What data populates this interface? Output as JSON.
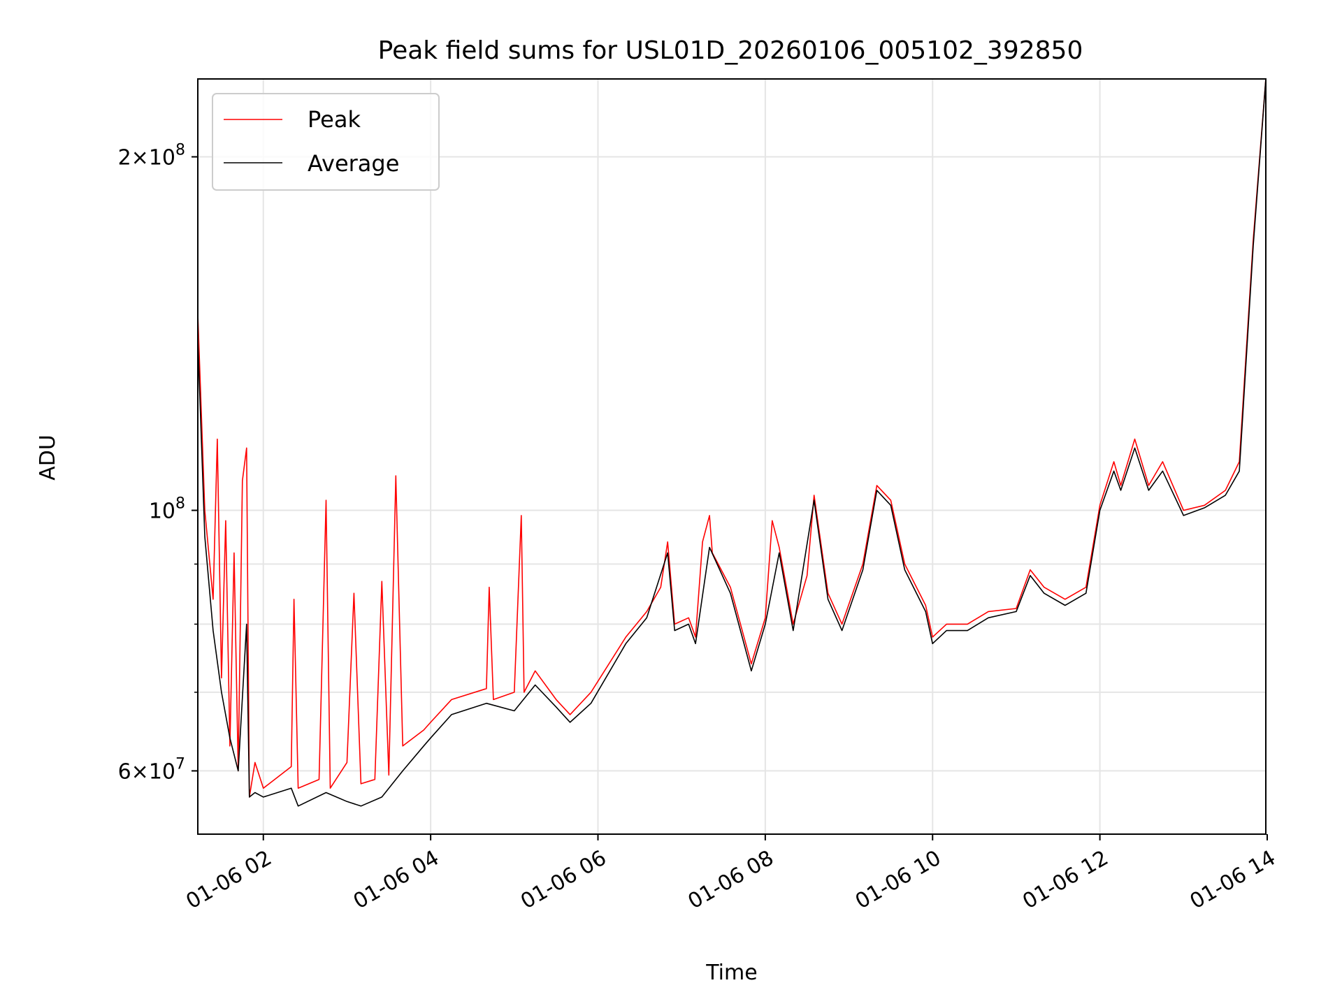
{
  "chart_data": {
    "type": "line",
    "title": "Peak field sums for USL01D_20260106_005102_392850",
    "xlabel": "Time",
    "ylabel": "ADU",
    "x_scale": "time",
    "y_scale": "log",
    "xlim": [
      "2026-01-06 01:13",
      "2026-01-06 13:59"
    ],
    "ylim": [
      53000000,
      233000000
    ],
    "grid": true,
    "legend_position": "top-left",
    "x_ticks": [
      "01-06 02",
      "01-06 04",
      "01-06 06",
      "01-06 08",
      "01-06 10",
      "01-06 12",
      "01-06 14"
    ],
    "x_tick_times": [
      "2026-01-06 02:00",
      "2026-01-06 04:00",
      "2026-01-06 06:00",
      "2026-01-06 08:00",
      "2026-01-06 10:00",
      "2026-01-06 12:00",
      "2026-01-06 14:00"
    ],
    "y_ticks": [
      {
        "value": 60000000,
        "mantissa": "6",
        "exponent": "7"
      },
      {
        "value": 100000000,
        "mantissa": "",
        "exponent": "8"
      },
      {
        "value": 200000000,
        "mantissa": "2",
        "exponent": "8"
      }
    ],
    "y_minor_grid": [
      70000000,
      80000000,
      90000000
    ],
    "series": [
      {
        "name": "Peak",
        "color": "#ff0000",
        "points": [
          [
            "2026-01-06 01:13",
            147000000
          ],
          [
            "2026-01-06 01:18",
            100000000
          ],
          [
            "2026-01-06 01:24",
            84000000
          ],
          [
            "2026-01-06 01:27",
            115000000
          ],
          [
            "2026-01-06 01:30",
            72000000
          ],
          [
            "2026-01-06 01:33",
            98000000
          ],
          [
            "2026-01-06 01:36",
            63000000
          ],
          [
            "2026-01-06 01:39",
            92000000
          ],
          [
            "2026-01-06 01:42",
            60000000
          ],
          [
            "2026-01-06 01:45",
            106000000
          ],
          [
            "2026-01-06 01:48",
            113000000
          ],
          [
            "2026-01-06 01:50",
            57000000
          ],
          [
            "2026-01-06 01:54",
            61000000
          ],
          [
            "2026-01-06 02:00",
            58000000
          ],
          [
            "2026-01-06 02:20",
            60500000
          ],
          [
            "2026-01-06 02:22",
            84000000
          ],
          [
            "2026-01-06 02:25",
            58000000
          ],
          [
            "2026-01-06 02:40",
            59000000
          ],
          [
            "2026-01-06 02:45",
            102000000
          ],
          [
            "2026-01-06 02:48",
            58000000
          ],
          [
            "2026-01-06 03:00",
            61000000
          ],
          [
            "2026-01-06 03:05",
            85000000
          ],
          [
            "2026-01-06 03:10",
            58500000
          ],
          [
            "2026-01-06 03:20",
            59000000
          ],
          [
            "2026-01-06 03:25",
            87000000
          ],
          [
            "2026-01-06 03:30",
            59500000
          ],
          [
            "2026-01-06 03:35",
            107000000
          ],
          [
            "2026-01-06 03:40",
            63000000
          ],
          [
            "2026-01-06 03:55",
            65000000
          ],
          [
            "2026-01-06 04:00",
            66000000
          ],
          [
            "2026-01-06 04:15",
            69000000
          ],
          [
            "2026-01-06 04:40",
            70500000
          ],
          [
            "2026-01-06 04:42",
            86000000
          ],
          [
            "2026-01-06 04:45",
            69000000
          ],
          [
            "2026-01-06 05:00",
            70000000
          ],
          [
            "2026-01-06 05:05",
            99000000
          ],
          [
            "2026-01-06 05:07",
            70000000
          ],
          [
            "2026-01-06 05:15",
            73000000
          ],
          [
            "2026-01-06 05:30",
            69000000
          ],
          [
            "2026-01-06 05:40",
            67000000
          ],
          [
            "2026-01-06 05:55",
            70000000
          ],
          [
            "2026-01-06 06:20",
            78000000
          ],
          [
            "2026-01-06 06:35",
            82000000
          ],
          [
            "2026-01-06 06:45",
            86000000
          ],
          [
            "2026-01-06 06:50",
            94000000
          ],
          [
            "2026-01-06 06:55",
            80000000
          ],
          [
            "2026-01-06 07:05",
            81000000
          ],
          [
            "2026-01-06 07:10",
            78000000
          ],
          [
            "2026-01-06 07:15",
            94000000
          ],
          [
            "2026-01-06 07:20",
            99000000
          ],
          [
            "2026-01-06 07:22",
            92000000
          ],
          [
            "2026-01-06 07:35",
            86000000
          ],
          [
            "2026-01-06 07:50",
            74000000
          ],
          [
            "2026-01-06 08:00",
            81000000
          ],
          [
            "2026-01-06 08:05",
            98000000
          ],
          [
            "2026-01-06 08:10",
            93000000
          ],
          [
            "2026-01-06 08:20",
            80000000
          ],
          [
            "2026-01-06 08:30",
            88000000
          ],
          [
            "2026-01-06 08:35",
            103000000
          ],
          [
            "2026-01-06 08:45",
            85000000
          ],
          [
            "2026-01-06 08:55",
            80000000
          ],
          [
            "2026-01-06 09:10",
            90000000
          ],
          [
            "2026-01-06 09:20",
            105000000
          ],
          [
            "2026-01-06 09:30",
            102000000
          ],
          [
            "2026-01-06 09:40",
            90000000
          ],
          [
            "2026-01-06 09:55",
            83000000
          ],
          [
            "2026-01-06 10:00",
            78000000
          ],
          [
            "2026-01-06 10:10",
            80000000
          ],
          [
            "2026-01-06 10:25",
            80000000
          ],
          [
            "2026-01-06 10:40",
            82000000
          ],
          [
            "2026-01-06 11:00",
            82500000
          ],
          [
            "2026-01-06 11:10",
            89000000
          ],
          [
            "2026-01-06 11:20",
            86000000
          ],
          [
            "2026-01-06 11:35",
            84000000
          ],
          [
            "2026-01-06 11:50",
            86000000
          ],
          [
            "2026-01-06 12:00",
            101000000
          ],
          [
            "2026-01-06 12:10",
            110000000
          ],
          [
            "2026-01-06 12:15",
            105000000
          ],
          [
            "2026-01-06 12:25",
            115000000
          ],
          [
            "2026-01-06 12:35",
            105000000
          ],
          [
            "2026-01-06 12:45",
            110000000
          ],
          [
            "2026-01-06 13:00",
            100000000
          ],
          [
            "2026-01-06 13:15",
            101000000
          ],
          [
            "2026-01-06 13:30",
            104000000
          ],
          [
            "2026-01-06 13:40",
            110000000
          ],
          [
            "2026-01-06 13:50",
            170000000
          ],
          [
            "2026-01-06 13:59",
            233000000
          ]
        ]
      },
      {
        "name": "Average",
        "color": "#000000",
        "points": [
          [
            "2026-01-06 01:13",
            140000000
          ],
          [
            "2026-01-06 01:18",
            95000000
          ],
          [
            "2026-01-06 01:24",
            79000000
          ],
          [
            "2026-01-06 01:30",
            70000000
          ],
          [
            "2026-01-06 01:36",
            64000000
          ],
          [
            "2026-01-06 01:42",
            60000000
          ],
          [
            "2026-01-06 01:48",
            80000000
          ],
          [
            "2026-01-06 01:50",
            57000000
          ],
          [
            "2026-01-06 01:54",
            57500000
          ],
          [
            "2026-01-06 02:00",
            57000000
          ],
          [
            "2026-01-06 02:20",
            58000000
          ],
          [
            "2026-01-06 02:25",
            56000000
          ],
          [
            "2026-01-06 02:45",
            57500000
          ],
          [
            "2026-01-06 03:00",
            56500000
          ],
          [
            "2026-01-06 03:10",
            56000000
          ],
          [
            "2026-01-06 03:25",
            57000000
          ],
          [
            "2026-01-06 03:40",
            60000000
          ],
          [
            "2026-01-06 03:55",
            63000000
          ],
          [
            "2026-01-06 04:00",
            64000000
          ],
          [
            "2026-01-06 04:15",
            67000000
          ],
          [
            "2026-01-06 04:40",
            68500000
          ],
          [
            "2026-01-06 05:00",
            67500000
          ],
          [
            "2026-01-06 05:15",
            71000000
          ],
          [
            "2026-01-06 05:30",
            68000000
          ],
          [
            "2026-01-06 05:40",
            66000000
          ],
          [
            "2026-01-06 05:55",
            68500000
          ],
          [
            "2026-01-06 06:20",
            77000000
          ],
          [
            "2026-01-06 06:35",
            81000000
          ],
          [
            "2026-01-06 06:50",
            92000000
          ],
          [
            "2026-01-06 06:55",
            79000000
          ],
          [
            "2026-01-06 07:05",
            80000000
          ],
          [
            "2026-01-06 07:10",
            77000000
          ],
          [
            "2026-01-06 07:20",
            93000000
          ],
          [
            "2026-01-06 07:35",
            85000000
          ],
          [
            "2026-01-06 07:50",
            73000000
          ],
          [
            "2026-01-06 08:00",
            80000000
          ],
          [
            "2026-01-06 08:10",
            92000000
          ],
          [
            "2026-01-06 08:20",
            79000000
          ],
          [
            "2026-01-06 08:35",
            102000000
          ],
          [
            "2026-01-06 08:45",
            84000000
          ],
          [
            "2026-01-06 08:55",
            79000000
          ],
          [
            "2026-01-06 09:10",
            89000000
          ],
          [
            "2026-01-06 09:20",
            104000000
          ],
          [
            "2026-01-06 09:30",
            101000000
          ],
          [
            "2026-01-06 09:40",
            89000000
          ],
          [
            "2026-01-06 09:55",
            82000000
          ],
          [
            "2026-01-06 10:00",
            77000000
          ],
          [
            "2026-01-06 10:10",
            79000000
          ],
          [
            "2026-01-06 10:25",
            79000000
          ],
          [
            "2026-01-06 10:40",
            81000000
          ],
          [
            "2026-01-06 11:00",
            82000000
          ],
          [
            "2026-01-06 11:10",
            88000000
          ],
          [
            "2026-01-06 11:20",
            85000000
          ],
          [
            "2026-01-06 11:35",
            83000000
          ],
          [
            "2026-01-06 11:50",
            85000000
          ],
          [
            "2026-01-06 12:00",
            100000000
          ],
          [
            "2026-01-06 12:10",
            108000000
          ],
          [
            "2026-01-06 12:15",
            104000000
          ],
          [
            "2026-01-06 12:25",
            113000000
          ],
          [
            "2026-01-06 12:35",
            104000000
          ],
          [
            "2026-01-06 12:45",
            108000000
          ],
          [
            "2026-01-06 13:00",
            99000000
          ],
          [
            "2026-01-06 13:15",
            100500000
          ],
          [
            "2026-01-06 13:30",
            103000000
          ],
          [
            "2026-01-06 13:40",
            108000000
          ],
          [
            "2026-01-06 13:50",
            168000000
          ],
          [
            "2026-01-06 13:59",
            233000000
          ]
        ]
      }
    ]
  }
}
